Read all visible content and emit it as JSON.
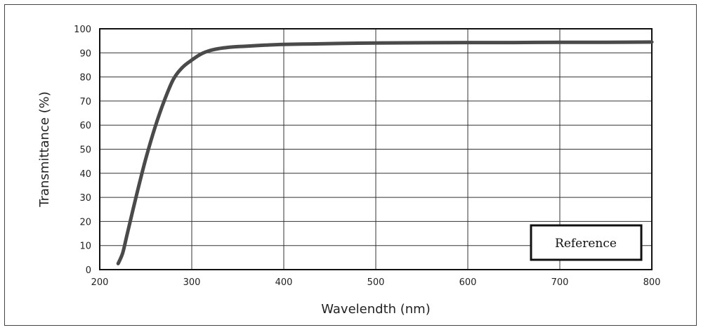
{
  "chart_data": {
    "type": "line",
    "xlabel": "Wavelendth  (nm)",
    "ylabel": "Transmittance  (%)",
    "xlim": [
      200,
      800
    ],
    "ylim": [
      0,
      100
    ],
    "xticks": [
      200,
      300,
      400,
      500,
      600,
      700,
      800
    ],
    "yticks": [
      0,
      10,
      20,
      30,
      40,
      50,
      60,
      70,
      80,
      90,
      100
    ],
    "grid": true,
    "annotation": "Reference",
    "annotation_position": "bottom-right",
    "line_color": "#4a4a4a",
    "series": [
      {
        "x": [
          220,
          225,
          230,
          240,
          250,
          260,
          270,
          280,
          290,
          300,
          310,
          320,
          330,
          340,
          350,
          360,
          380,
          400,
          430,
          460,
          500,
          550,
          600,
          650,
          700,
          750,
          800
        ],
        "y": [
          2.5,
          7,
          15,
          31,
          46,
          59,
          70,
          79,
          84,
          87,
          89.5,
          91,
          91.8,
          92.3,
          92.6,
          92.8,
          93.2,
          93.5,
          93.7,
          93.9,
          94.1,
          94.2,
          94.3,
          94.3,
          94.4,
          94.4,
          94.5
        ]
      }
    ]
  }
}
